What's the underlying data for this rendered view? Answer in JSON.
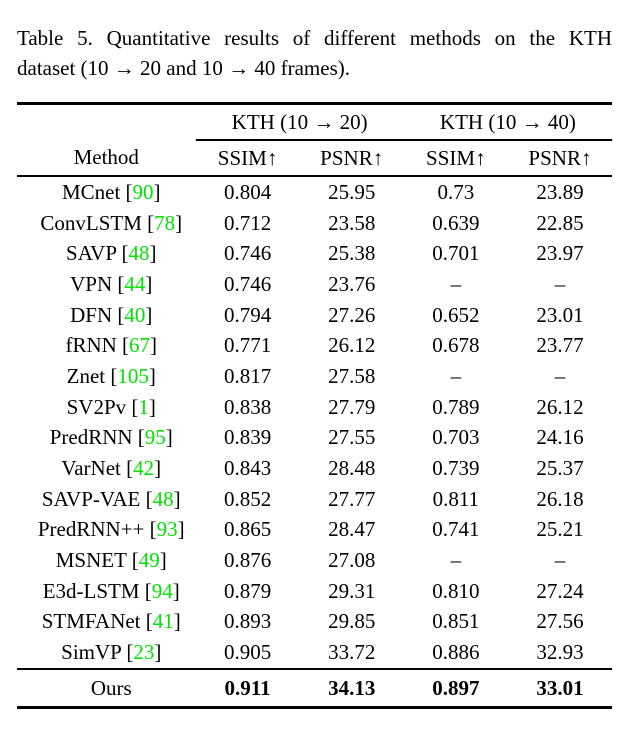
{
  "caption": {
    "line1": "Table 5. Quantitative results of different methods on the KTH",
    "line2": "dataset (10 → 20 and 10 → 40 frames)."
  },
  "table": {
    "group_headers": [
      {
        "label": "KTH (10 → 20)"
      },
      {
        "label": "KTH (10 → 40)"
      }
    ],
    "col_headers": {
      "method": "Method",
      "metrics": [
        "SSIM↑",
        "PSNR↑",
        "SSIM↑",
        "PSNR↑"
      ]
    },
    "rows": [
      {
        "method": "MCnet",
        "cite": "90",
        "values": [
          "0.804",
          "25.95",
          "0.73",
          "23.89"
        ]
      },
      {
        "method": "ConvLSTM",
        "cite": "78",
        "values": [
          "0.712",
          "23.58",
          "0.639",
          "22.85"
        ]
      },
      {
        "method": "SAVP",
        "cite": "48",
        "values": [
          "0.746",
          "25.38",
          "0.701",
          "23.97"
        ]
      },
      {
        "method": "VPN",
        "cite": "44",
        "values": [
          "0.746",
          "23.76",
          "–",
          "–"
        ]
      },
      {
        "method": "DFN",
        "cite": "40",
        "values": [
          "0.794",
          "27.26",
          "0.652",
          "23.01"
        ]
      },
      {
        "method": "fRNN",
        "cite": "67",
        "values": [
          "0.771",
          "26.12",
          "0.678",
          "23.77"
        ]
      },
      {
        "method": "Znet",
        "cite": "105",
        "values": [
          "0.817",
          "27.58",
          "–",
          "–"
        ]
      },
      {
        "method": "SV2Pv",
        "cite": "1",
        "values": [
          "0.838",
          "27.79",
          "0.789",
          "26.12"
        ]
      },
      {
        "method": "PredRNN",
        "cite": "95",
        "values": [
          "0.839",
          "27.55",
          "0.703",
          "24.16"
        ]
      },
      {
        "method": "VarNet",
        "cite": "42",
        "values": [
          "0.843",
          "28.48",
          "0.739",
          "25.37"
        ]
      },
      {
        "method": "SAVP-VAE",
        "cite": "48",
        "values": [
          "0.852",
          "27.77",
          "0.811",
          "26.18"
        ]
      },
      {
        "method": "PredRNN++",
        "cite": "93",
        "values": [
          "0.865",
          "28.47",
          "0.741",
          "25.21"
        ]
      },
      {
        "method": "MSNET",
        "cite": "49",
        "values": [
          "0.876",
          "27.08",
          "–",
          "–"
        ]
      },
      {
        "method": "E3d-LSTM",
        "cite": "94",
        "values": [
          "0.879",
          "29.31",
          "0.810",
          "27.24"
        ]
      },
      {
        "method": "STMFANet",
        "cite": "41",
        "values": [
          "0.893",
          "29.85",
          "0.851",
          "27.56"
        ]
      },
      {
        "method": "SimVP",
        "cite": "23",
        "values": [
          "0.905",
          "33.72",
          "0.886",
          "32.93"
        ]
      }
    ],
    "ours": {
      "method": "Ours",
      "values": [
        "0.911",
        "34.13",
        "0.897",
        "33.01"
      ]
    }
  },
  "colors": {
    "citation_green": "#00e400",
    "text": "#000000",
    "background": "#ffffff"
  }
}
